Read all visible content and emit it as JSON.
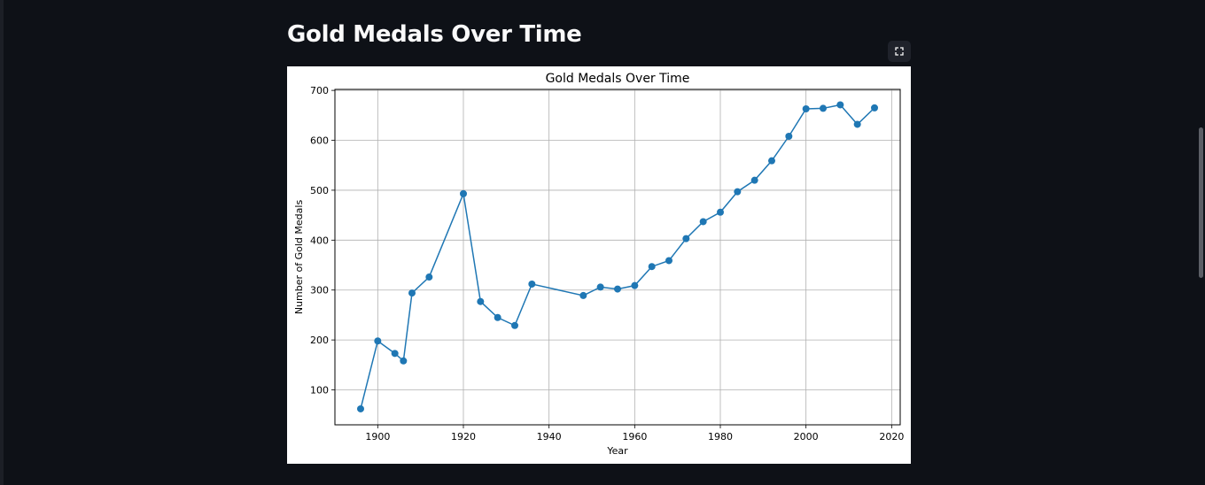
{
  "page": {
    "title": "Gold Medals Over Time"
  },
  "toolbar": {
    "fullscreen_icon": "expand-icon"
  },
  "colors": {
    "background": "#0e1117",
    "title": "#fafafa",
    "line": "#1f77b4",
    "grid": "#b0b0b0"
  },
  "chart_data": {
    "type": "line",
    "title": "Gold Medals Over Time",
    "xlabel": "Year",
    "ylabel": "Number of Gold Medals",
    "xlim": [
      1890,
      2022
    ],
    "ylim": [
      30,
      702
    ],
    "xticks": [
      1900,
      1920,
      1940,
      1960,
      1980,
      2000,
      2020
    ],
    "yticks": [
      100,
      200,
      300,
      400,
      500,
      600,
      700
    ],
    "grid": true,
    "marker": "circle",
    "series": [
      {
        "x": [
          1896,
          1900,
          1904,
          1906,
          1908,
          1912,
          1920,
          1924,
          1928,
          1932,
          1936,
          1948,
          1952,
          1956,
          1960,
          1964,
          1968,
          1972,
          1976,
          1980,
          1984,
          1988,
          1992,
          1996,
          2000,
          2004,
          2008,
          2012,
          2016
        ],
        "values": [
          62,
          198,
          173,
          158,
          294,
          326,
          493,
          277,
          245,
          229,
          312,
          289,
          306,
          302,
          309,
          347,
          359,
          403,
          437,
          456,
          497,
          520,
          559,
          608,
          663,
          664,
          671,
          632,
          665
        ]
      }
    ]
  }
}
